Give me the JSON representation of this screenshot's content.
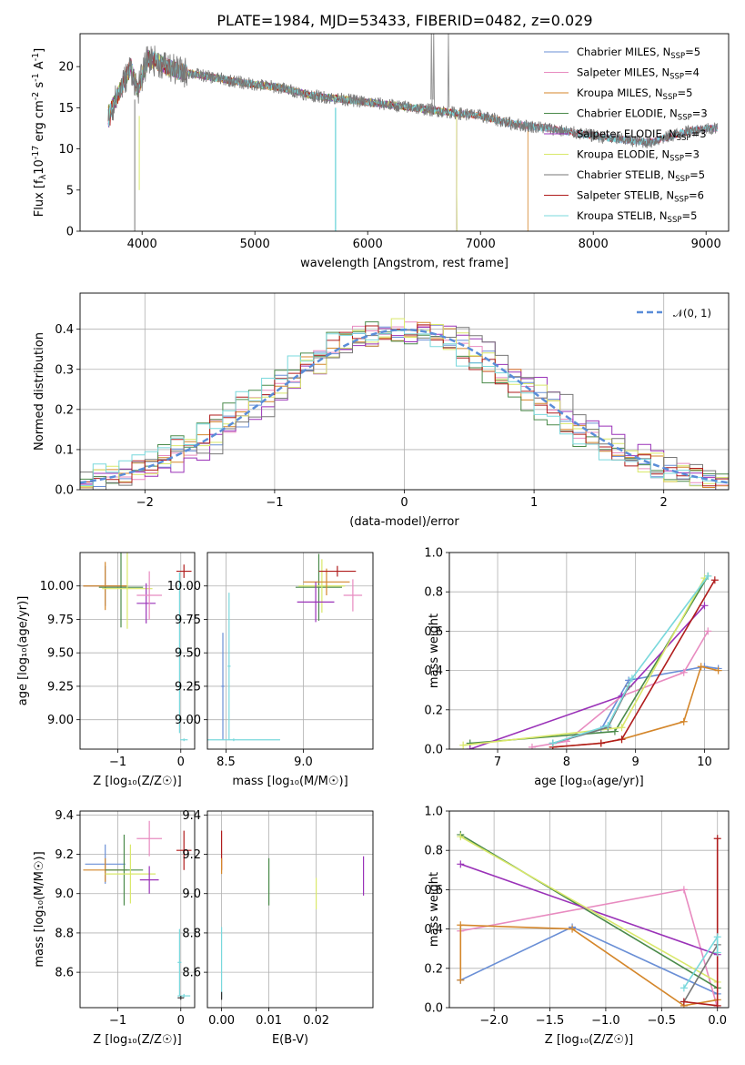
{
  "title": "PLATE=1984, MJD=53433, FIBERID=0482, z=0.029",
  "chart_data": [
    {
      "id": "spectrum",
      "type": "line",
      "xlabel": "wavelength [Angstrom, rest frame]",
      "ylabel_parts": {
        "a": "Flux [f",
        "sub1": "λ",
        "b": "10",
        "sup1": "-17",
        "c": " erg cm",
        "sup2": "-2",
        "d": " s",
        "sup3": "-1",
        "e": " A",
        "sup4": "-1",
        "f": "]"
      },
      "xlim": [
        3450,
        9200
      ],
      "ylim": [
        0,
        24
      ],
      "xticks": [
        4000,
        5000,
        6000,
        7000,
        8000,
        9000
      ],
      "yticks": [
        0,
        5,
        10,
        15,
        20
      ],
      "legend_position": "top-right",
      "data_anchor": {
        "wavelength": [
          3700,
          3800,
          3900,
          3960,
          4050,
          4150,
          4300,
          4500,
          4700,
          4900,
          5200,
          5500,
          5800,
          6100,
          6400,
          6700,
          7000,
          7300,
          7600,
          7900,
          8200,
          8500,
          8800,
          9000
        ],
        "flux": [
          14,
          17,
          20,
          17,
          21,
          20.5,
          19.5,
          19,
          18.5,
          18,
          17.5,
          16.5,
          16,
          15.5,
          15,
          14.5,
          14,
          13,
          12.5,
          11.8,
          11.2,
          10.8,
          12,
          12.5
        ]
      },
      "series": [
        {
          "label": "Chabrier MILES",
          "n": "5",
          "color": "#6a8fd6",
          "cutoff": 9100
        },
        {
          "label": "Salpeter MILES",
          "n": "4",
          "color": "#e88bc0",
          "cutoff": 9100
        },
        {
          "label": "Kroupa MILES",
          "n": "5",
          "color": "#d4862a",
          "cutoff": 7420
        },
        {
          "label": "Chabrier ELODIE",
          "n": "3",
          "color": "#4a8a4a",
          "cutoff": 6790
        },
        {
          "label": "Salpeter ELODIE",
          "n": "3",
          "color": "#9a32b8",
          "cutoff": 6790
        },
        {
          "label": "Kroupa ELODIE",
          "n": "3",
          "color": "#d9e86a",
          "cutoff": 6790
        },
        {
          "label": "Chabrier STELIB",
          "n": "5",
          "color": "#777777",
          "cutoff": 9100
        },
        {
          "label": "Salpeter STELIB",
          "n": "6",
          "color": "#b01c1c",
          "cutoff": 9100
        },
        {
          "label": "Kroupa STELIB",
          "n": "5",
          "color": "#79d8dc",
          "cutoff": 9100
        }
      ]
    },
    {
      "id": "residuals",
      "type": "line",
      "xlabel": "(data-model)/error",
      "ylabel": "Normed distribution",
      "xlim": [
        -2.5,
        2.5
      ],
      "ylim": [
        0,
        0.49
      ],
      "xticks": [
        -2,
        -1,
        0,
        1,
        2
      ],
      "yticks": [
        0.0,
        0.1,
        0.2,
        0.3,
        0.4
      ],
      "grid": true,
      "legend": "𝒩(0, 1)",
      "legend_position": "top-right",
      "gaussian": {
        "mean": 0,
        "sigma": 1
      }
    },
    {
      "id": "age-vs-Z",
      "type": "scatter",
      "xlabel": "Z [log₁₀(Z/Z☉)]",
      "ylabel": "age  [log₁₀(age/yr)]",
      "xlim": [
        -1.6,
        0.22
      ],
      "ylim": [
        8.78,
        10.25
      ],
      "xticks": [
        -1,
        0
      ],
      "yticks": [
        9.0,
        9.25,
        9.5,
        9.75,
        10.0
      ],
      "grid": true,
      "points": [
        {
          "c": "#6a8fd6",
          "x": -1.2,
          "y": 10.0,
          "ex": 0.35,
          "ey": 0.15
        },
        {
          "c": "#d4862a",
          "x": -1.2,
          "y": 10.0,
          "ex": 0.35,
          "ey": 0.18
        },
        {
          "c": "#4a8a4a",
          "x": -0.95,
          "y": 9.99,
          "ex": 0.35,
          "ey": 0.3
        },
        {
          "c": "#d9e86a",
          "x": -0.85,
          "y": 9.98,
          "ex": 0.4,
          "ey": 0.3
        },
        {
          "c": "#9a32b8",
          "x": -0.55,
          "y": 9.87,
          "ex": 0.15,
          "ey": 0.15
        },
        {
          "c": "#e88bc0",
          "x": -0.5,
          "y": 9.93,
          "ex": 0.2,
          "ey": 0.18
        },
        {
          "c": "#b01c1c",
          "x": 0.05,
          "y": 10.11,
          "ex": 0.12,
          "ey": 0.05
        },
        {
          "c": "#79d8dc",
          "x": -0.02,
          "y": 9.5,
          "ex": 0.03,
          "ey": 0.6
        },
        {
          "c": "#79d8dc",
          "x": 0.05,
          "y": 8.85,
          "ex": 0.06,
          "ey": 0.01
        }
      ]
    },
    {
      "id": "age-vs-mass",
      "type": "scatter",
      "xlabel": "mass [log₁₀(M/M☉)]",
      "xlim": [
        8.38,
        9.45
      ],
      "ylim": [
        8.78,
        10.25
      ],
      "xticks": [
        8.5,
        9.0
      ],
      "yticks": [
        9.0,
        9.25,
        9.5,
        9.75,
        10.0
      ],
      "grid": true,
      "points": [
        {
          "c": "#4a8a4a",
          "x": 9.1,
          "y": 9.99,
          "ex": 0.15,
          "ey": 0.25
        },
        {
          "c": "#d9e86a",
          "x": 9.12,
          "y": 10.0,
          "ex": 0.15,
          "ey": 0.2
        },
        {
          "c": "#d4862a",
          "x": 9.15,
          "y": 10.03,
          "ex": 0.15,
          "ey": 0.1
        },
        {
          "c": "#9a32b8",
          "x": 9.08,
          "y": 9.88,
          "ex": 0.12,
          "ey": 0.15
        },
        {
          "c": "#e88bc0",
          "x": 9.32,
          "y": 9.93,
          "ex": 0.06,
          "ey": 0.12
        },
        {
          "c": "#b01c1c",
          "x": 9.22,
          "y": 10.11,
          "ex": 0.12,
          "ey": 0.04
        },
        {
          "c": "#6a8fd6",
          "x": 8.48,
          "y": 9.25,
          "ex": 0.01,
          "ey": 0.4
        },
        {
          "c": "#79d8dc",
          "x": 8.55,
          "y": 8.85,
          "ex": 0.3,
          "ey": 0.01
        },
        {
          "c": "#79d8dc",
          "x": 8.52,
          "y": 9.4,
          "ex": 0.01,
          "ey": 0.55
        }
      ]
    },
    {
      "id": "mw-vs-age",
      "type": "line",
      "xlabel": "age  [log₁₀(age/yr)]",
      "ylabel": "mass weight",
      "xlim": [
        6.3,
        10.35
      ],
      "ylim": [
        0,
        1.0
      ],
      "xticks": [
        7,
        8,
        9,
        10
      ],
      "yticks": [
        0.0,
        0.2,
        0.4,
        0.6,
        0.8,
        1.0
      ],
      "grid": true,
      "series": [
        {
          "c": "#6a8fd6",
          "x": [
            7.8,
            8.5,
            8.9,
            10.0,
            10.2
          ],
          "y": [
            0.03,
            0.1,
            0.35,
            0.42,
            0.41
          ]
        },
        {
          "c": "#e88bc0",
          "x": [
            7.5,
            8.0,
            8.8,
            9.7,
            10.05
          ],
          "y": [
            0.01,
            0.04,
            0.27,
            0.39,
            0.6
          ]
        },
        {
          "c": "#d4862a",
          "x": [
            7.8,
            8.5,
            8.8,
            9.7,
            9.95,
            10.2
          ],
          "y": [
            0.01,
            0.03,
            0.05,
            0.14,
            0.42,
            0.4
          ]
        },
        {
          "c": "#4a8a4a",
          "x": [
            6.6,
            8.7,
            10.05
          ],
          "y": [
            0.03,
            0.09,
            0.88
          ]
        },
        {
          "c": "#9a32b8",
          "x": [
            6.6,
            8.8,
            10.0
          ],
          "y": [
            0.0,
            0.27,
            0.73
          ]
        },
        {
          "c": "#d9e86a",
          "x": [
            6.5,
            8.8,
            10.0
          ],
          "y": [
            0.02,
            0.11,
            0.87
          ]
        },
        {
          "c": "#777777",
          "x": [
            7.8,
            8.6,
            8.9
          ],
          "y": [
            0.03,
            0.11,
            0.32
          ]
        },
        {
          "c": "#b01c1c",
          "x": [
            7.8,
            8.5,
            8.8,
            10.15
          ],
          "y": [
            0.01,
            0.03,
            0.05,
            0.86
          ]
        },
        {
          "c": "#79d8dc",
          "x": [
            7.8,
            8.6,
            8.95,
            10.05
          ],
          "y": [
            0.03,
            0.12,
            0.36,
            0.88
          ]
        }
      ]
    },
    {
      "id": "mass-vs-Z",
      "type": "scatter",
      "xlabel": "Z [log₁₀(Z/Z☉)]",
      "ylabel": "mass [log₁₀(M/M☉)]",
      "xlim": [
        -1.6,
        0.22
      ],
      "ylim": [
        8.42,
        9.42
      ],
      "xticks": [
        -1,
        0
      ],
      "yticks": [
        8.6,
        8.8,
        9.0,
        9.2,
        9.4
      ],
      "grid": true,
      "points": [
        {
          "c": "#6a8fd6",
          "x": -1.2,
          "y": 9.15,
          "ex": 0.32,
          "ey": 0.1
        },
        {
          "c": "#d4862a",
          "x": -1.2,
          "y": 9.12,
          "ex": 0.35,
          "ey": 0.06
        },
        {
          "c": "#4a8a4a",
          "x": -0.9,
          "y": 9.12,
          "ex": 0.3,
          "ey": 0.18
        },
        {
          "c": "#d9e86a",
          "x": -0.8,
          "y": 9.1,
          "ex": 0.4,
          "ey": 0.15
        },
        {
          "c": "#9a32b8",
          "x": -0.5,
          "y": 9.07,
          "ex": 0.15,
          "ey": 0.07
        },
        {
          "c": "#e88bc0",
          "x": -0.5,
          "y": 9.28,
          "ex": 0.2,
          "ey": 0.09
        },
        {
          "c": "#b01c1c",
          "x": 0.05,
          "y": 9.22,
          "ex": 0.12,
          "ey": 0.1
        },
        {
          "c": "#79d8dc",
          "x": -0.02,
          "y": 8.65,
          "ex": 0.03,
          "ey": 0.17
        },
        {
          "c": "#79d8dc",
          "x": 0.05,
          "y": 8.48,
          "ex": 0.1,
          "ey": 0.01
        },
        {
          "c": "#333333",
          "x": 0.0,
          "y": 8.47,
          "ex": 0.05,
          "ey": 0.01
        }
      ]
    },
    {
      "id": "mass-vs-EBV",
      "type": "scatter",
      "xlabel": "E(B-V)",
      "xlim": [
        -0.003,
        0.032
      ],
      "ylim": [
        8.42,
        9.42
      ],
      "xticks": [
        0.0,
        0.01,
        0.02
      ],
      "yticks": [
        8.6,
        8.8,
        9.0,
        9.2,
        9.4
      ],
      "grid": true,
      "points": [
        {
          "c": "#b01c1c",
          "x": 0.0,
          "y": 9.22,
          "ex": 0,
          "ey": 0.1
        },
        {
          "c": "#d4862a",
          "x": 0.0,
          "y": 9.14,
          "ex": 0,
          "ey": 0.04
        },
        {
          "c": "#79d8dc",
          "x": 0.0,
          "y": 8.65,
          "ex": 0,
          "ey": 0.18
        },
        {
          "c": "#333333",
          "x": 0.0,
          "y": 8.48,
          "ex": 0,
          "ey": 0.02
        },
        {
          "c": "#4a8a4a",
          "x": 0.01,
          "y": 9.06,
          "ex": 0,
          "ey": 0.12
        },
        {
          "c": "#d9e86a",
          "x": 0.02,
          "y": 9.0,
          "ex": 0,
          "ey": 0.08
        },
        {
          "c": "#9a32b8",
          "x": 0.03,
          "y": 9.09,
          "ex": 0,
          "ey": 0.1
        }
      ]
    },
    {
      "id": "mw-vs-Z",
      "type": "line",
      "xlabel": "Z [log₁₀(Z/Z☉)]",
      "ylabel": "mass weight",
      "xlim": [
        -2.4,
        0.1
      ],
      "ylim": [
        0,
        1.0
      ],
      "xticks": [
        -2.0,
        -1.5,
        -1.0,
        -0.5,
        0.0
      ],
      "yticks": [
        0.0,
        0.2,
        0.4,
        0.6,
        0.8,
        1.0
      ],
      "grid": true,
      "series": [
        {
          "c": "#6a8fd6",
          "x": [
            -2.3,
            -1.3,
            0.0
          ],
          "y": [
            0.14,
            0.41,
            0.07
          ]
        },
        {
          "c": "#e88bc0",
          "x": [
            -2.3,
            -0.3,
            0.0
          ],
          "y": [
            0.39,
            0.6,
            0.0
          ]
        },
        {
          "c": "#d4862a",
          "x": [
            -2.3,
            -2.3,
            -1.3,
            -0.3,
            0.0
          ],
          "y": [
            0.14,
            0.42,
            0.4,
            0.01,
            0.04
          ]
        },
        {
          "c": "#4a8a4a",
          "x": [
            -2.3,
            0.0
          ],
          "y": [
            0.88,
            0.1
          ]
        },
        {
          "c": "#9a32b8",
          "x": [
            -2.3,
            0.0
          ],
          "y": [
            0.73,
            0.27
          ]
        },
        {
          "c": "#d9e86a",
          "x": [
            -2.3,
            0.0
          ],
          "y": [
            0.87,
            0.13
          ]
        },
        {
          "c": "#777777",
          "x": [
            -0.3,
            0.0
          ],
          "y": [
            0.03,
            0.32
          ]
        },
        {
          "c": "#b01c1c",
          "x": [
            -0.3,
            0.0,
            0.0
          ],
          "y": [
            0.03,
            0.01,
            0.86
          ]
        },
        {
          "c": "#79d8dc",
          "x": [
            -0.3,
            0.0,
            0.0
          ],
          "y": [
            0.1,
            0.36,
            0.28
          ]
        }
      ]
    }
  ]
}
